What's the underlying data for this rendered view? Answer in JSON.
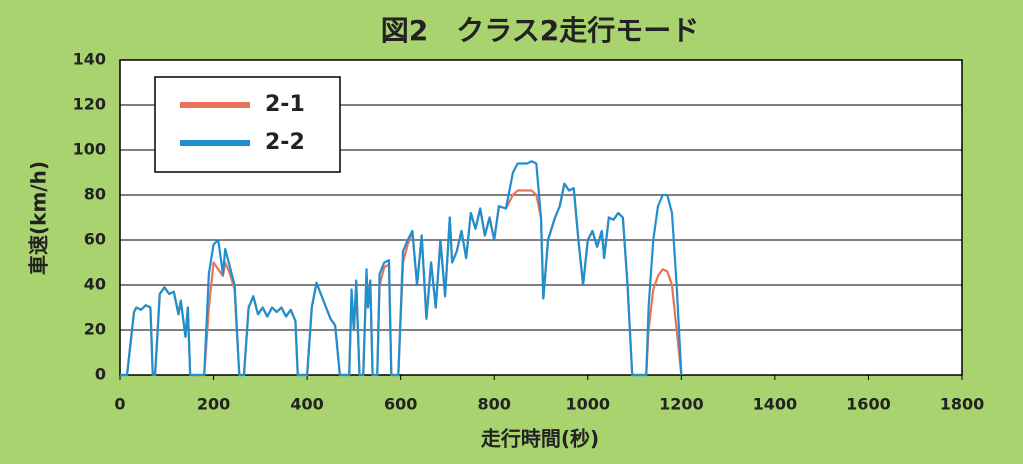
{
  "chart_data": {
    "type": "line",
    "title": "図2　クラス2走行モード",
    "x_label": "走行時間(秒)",
    "y_label": "車速(km/h)",
    "x": [
      0,
      15,
      30,
      35,
      45,
      55,
      65,
      70,
      75,
      85,
      95,
      105,
      115,
      125,
      130,
      140,
      145,
      150,
      180,
      190,
      200,
      210,
      220,
      225,
      235,
      245,
      255,
      265,
      275,
      285,
      295,
      305,
      315,
      325,
      335,
      345,
      355,
      365,
      375,
      380,
      400,
      410,
      420,
      435,
      450,
      460,
      470,
      490,
      495,
      500,
      505,
      512,
      520,
      527,
      530,
      535,
      540,
      550,
      555,
      565,
      575,
      580,
      595,
      605,
      615,
      625,
      635,
      645,
      655,
      665,
      675,
      685,
      695,
      705,
      710,
      720,
      730,
      740,
      750,
      760,
      770,
      780,
      790,
      800,
      810,
      825,
      840,
      850,
      870,
      880,
      890,
      900,
      905,
      915,
      930,
      940,
      950,
      960,
      970,
      980,
      990,
      1000,
      1010,
      1020,
      1030,
      1035,
      1045,
      1055,
      1065,
      1075,
      1085,
      1095,
      1125,
      1130,
      1140,
      1150,
      1160,
      1170,
      1180,
      1190,
      1200
    ],
    "series": [
      {
        "name": "2-1",
        "color": "#e8735a",
        "values": [
          0,
          0,
          28,
          30,
          29,
          31,
          30,
          0,
          0,
          36,
          39,
          36,
          37,
          27,
          33,
          17,
          30,
          0,
          0,
          30,
          50,
          47,
          44,
          50,
          45,
          38,
          0,
          0,
          30,
          35,
          27,
          30,
          26,
          30,
          28,
          30,
          26,
          29,
          24,
          0,
          0,
          30,
          41,
          33,
          25,
          22,
          0,
          0,
          35,
          20,
          40,
          0,
          0,
          45,
          30,
          42,
          0,
          0,
          40,
          48,
          49,
          0,
          0,
          50,
          58,
          64,
          40,
          62,
          25,
          50,
          30,
          60,
          35,
          70,
          50,
          55,
          64,
          52,
          72,
          65,
          74,
          62,
          70,
          60,
          75,
          74,
          80,
          82,
          82,
          82,
          80,
          70,
          34,
          60,
          70,
          75,
          85,
          82,
          83,
          60,
          40,
          60,
          64,
          57,
          64,
          52,
          70,
          69,
          72,
          70,
          40,
          0,
          0,
          20,
          38,
          44,
          47,
          46,
          40,
          20,
          0
        ]
      },
      {
        "name": "2-2",
        "color": "#1f8fd0",
        "values": [
          0,
          0,
          28,
          30,
          29,
          31,
          30,
          0,
          0,
          36,
          39,
          36,
          37,
          27,
          33,
          17,
          30,
          0,
          0,
          45,
          58,
          60,
          45,
          56,
          48,
          40,
          0,
          0,
          30,
          35,
          27,
          30,
          26,
          30,
          28,
          30,
          26,
          29,
          24,
          0,
          0,
          30,
          41,
          33,
          25,
          22,
          0,
          0,
          38,
          20,
          42,
          0,
          0,
          47,
          30,
          42,
          0,
          0,
          45,
          50,
          51,
          0,
          0,
          55,
          60,
          64,
          40,
          62,
          25,
          50,
          30,
          60,
          35,
          70,
          50,
          55,
          64,
          52,
          72,
          65,
          74,
          62,
          70,
          60,
          75,
          74,
          90,
          94,
          94,
          95,
          94,
          70,
          34,
          60,
          70,
          75,
          85,
          82,
          83,
          60,
          40,
          60,
          64,
          57,
          64,
          52,
          70,
          69,
          72,
          70,
          40,
          0,
          0,
          30,
          60,
          75,
          80,
          80,
          72,
          40,
          0
        ]
      }
    ],
    "xlim": [
      0,
      1800
    ],
    "xticks": [
      0,
      200,
      400,
      600,
      800,
      1000,
      1200,
      1400,
      1600,
      1800
    ],
    "ylim": [
      0,
      140
    ],
    "yticks": [
      0,
      20,
      40,
      60,
      80,
      100,
      120,
      140
    ],
    "grid": true,
    "legend": "upper left"
  }
}
